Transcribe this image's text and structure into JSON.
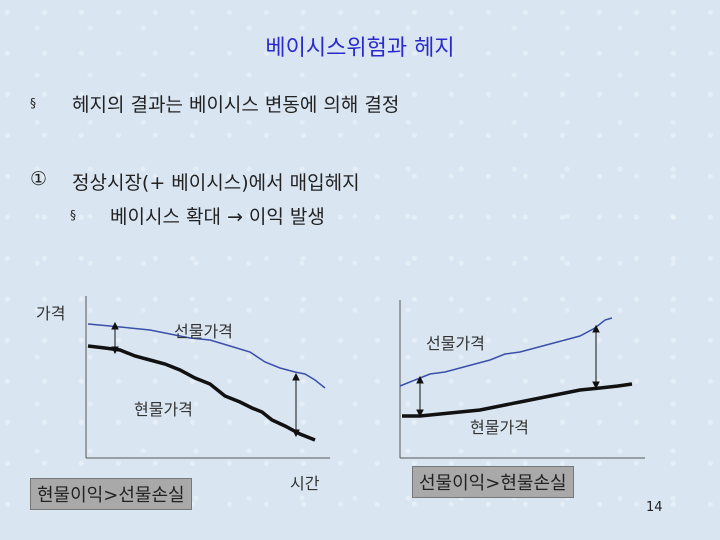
{
  "title": "베이시스위험과 헤지",
  "bullet1": {
    "symbol": "§",
    "text": "헤지의 결과는 베이시스 변동에 의해 결정"
  },
  "item1": {
    "number": "①",
    "text": "정상시장(+ 베이시스)에서 매입헤지"
  },
  "sub1": {
    "symbol": "§",
    "text": "베이시스 확대 → 이익 발생"
  },
  "diagram": {
    "y_label": "가격",
    "x_label": "시간",
    "left": {
      "futures_label": "선물가격",
      "spot_label": "현물가격",
      "result": "현물이익>선물손실"
    },
    "right": {
      "futures_label": "선물가격",
      "spot_label": "현물가격",
      "result": "선물이익>현물손실"
    },
    "colors": {
      "futures": "#3b4fa8",
      "spot": "#111111"
    }
  },
  "page_number": "14"
}
